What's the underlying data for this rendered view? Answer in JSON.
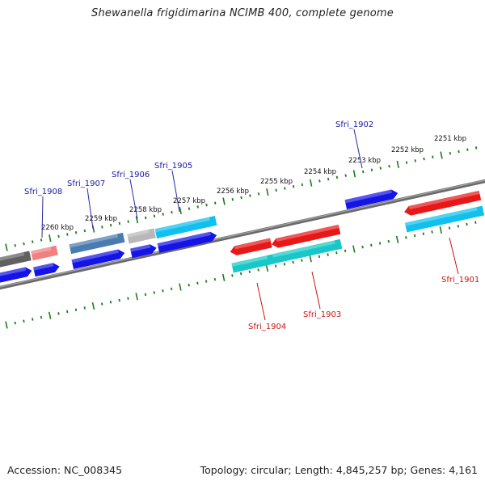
{
  "title": "Shewanella frigidimarina NCIMB 400, complete genome",
  "footer": {
    "accession": "Accession: NC_008345",
    "topology": "Topology: circular; Length: 4,845,257 bp; Genes: 4,161"
  },
  "colors": {
    "backbone": "#777777",
    "ticks": "#1e7b1e",
    "label_forward": "#1a1aa6",
    "label_reverse": "#c81414",
    "blue": "#1414e6",
    "red": "#e81818",
    "cyan": "#10c0ee",
    "teal": "#18c8c8",
    "steel": "#4a7cb0",
    "grey": "#b8b8b8",
    "dark": "#606060",
    "pink": "#f08080"
  },
  "kbp_labels": [
    "2251 kbp",
    "2252 kbp",
    "2253 kbp",
    "2254 kbp",
    "2255 kbp",
    "2256 kbp",
    "2257 kbp",
    "2258 kbp",
    "2259 kbp",
    "2260 kbp"
  ],
  "gene_labels": {
    "sfri_1908": "Sfri_1908",
    "sfri_1907": "Sfri_1907",
    "sfri_1906": "Sfri_1906",
    "sfri_1905": "Sfri_1905",
    "sfri_1902": "Sfri_1902",
    "sfri_1904": "Sfri_1904",
    "sfri_1903": "Sfri_1903",
    "sfri_1901": "Sfri_1901"
  }
}
